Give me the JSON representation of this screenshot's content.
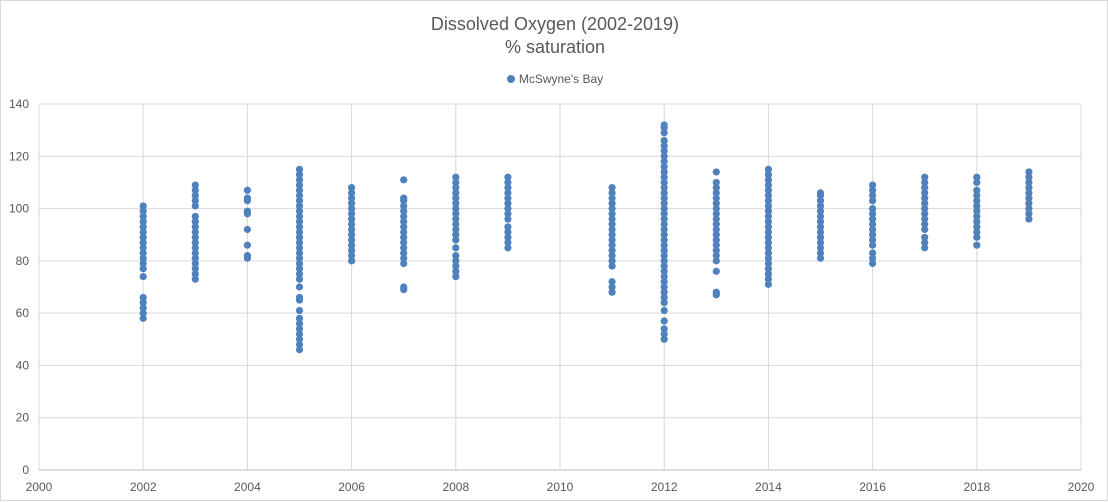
{
  "chart_data": {
    "type": "scatter",
    "title": "Dissolved Oxygen (2002-2019)",
    "subtitle": "% saturation",
    "xlabel": "",
    "ylabel": "",
    "xlim": [
      2000,
      2020
    ],
    "ylim": [
      0,
      140
    ],
    "x_ticks": [
      2000,
      2002,
      2004,
      2006,
      2008,
      2010,
      2012,
      2014,
      2016,
      2018,
      2020
    ],
    "y_ticks": [
      0,
      20,
      40,
      60,
      80,
      100,
      120,
      140
    ],
    "grid": true,
    "legend_position": "top",
    "colors": {
      "series": "#4f81bd",
      "grid": "#d9d9d9",
      "text": "#595959"
    },
    "series": [
      {
        "name": "McSwyne's Bay",
        "points": [
          [
            2002,
            58
          ],
          [
            2002,
            60
          ],
          [
            2002,
            62
          ],
          [
            2002,
            64
          ],
          [
            2002,
            66
          ],
          [
            2002,
            74
          ],
          [
            2002,
            77
          ],
          [
            2002,
            79
          ],
          [
            2002,
            81
          ],
          [
            2002,
            83
          ],
          [
            2002,
            85
          ],
          [
            2002,
            87
          ],
          [
            2002,
            89
          ],
          [
            2002,
            91
          ],
          [
            2002,
            93
          ],
          [
            2002,
            95
          ],
          [
            2002,
            97
          ],
          [
            2002,
            99
          ],
          [
            2002,
            101
          ],
          [
            2003,
            73
          ],
          [
            2003,
            75
          ],
          [
            2003,
            77
          ],
          [
            2003,
            79
          ],
          [
            2003,
            81
          ],
          [
            2003,
            83
          ],
          [
            2003,
            85
          ],
          [
            2003,
            87
          ],
          [
            2003,
            89
          ],
          [
            2003,
            91
          ],
          [
            2003,
            93
          ],
          [
            2003,
            95
          ],
          [
            2003,
            97
          ],
          [
            2003,
            101
          ],
          [
            2003,
            103
          ],
          [
            2003,
            105
          ],
          [
            2003,
            107
          ],
          [
            2003,
            109
          ],
          [
            2004,
            81
          ],
          [
            2004,
            82
          ],
          [
            2004,
            86
          ],
          [
            2004,
            92
          ],
          [
            2004,
            98
          ],
          [
            2004,
            99
          ],
          [
            2004,
            103
          ],
          [
            2004,
            104
          ],
          [
            2004,
            107
          ],
          [
            2005,
            46
          ],
          [
            2005,
            48
          ],
          [
            2005,
            50
          ],
          [
            2005,
            52
          ],
          [
            2005,
            54
          ],
          [
            2005,
            56
          ],
          [
            2005,
            58
          ],
          [
            2005,
            61
          ],
          [
            2005,
            65
          ],
          [
            2005,
            66
          ],
          [
            2005,
            70
          ],
          [
            2005,
            73
          ],
          [
            2005,
            75
          ],
          [
            2005,
            77
          ],
          [
            2005,
            79
          ],
          [
            2005,
            81
          ],
          [
            2005,
            83
          ],
          [
            2005,
            85
          ],
          [
            2005,
            87
          ],
          [
            2005,
            89
          ],
          [
            2005,
            91
          ],
          [
            2005,
            93
          ],
          [
            2005,
            95
          ],
          [
            2005,
            97
          ],
          [
            2005,
            99
          ],
          [
            2005,
            101
          ],
          [
            2005,
            103
          ],
          [
            2005,
            105
          ],
          [
            2005,
            107
          ],
          [
            2005,
            109
          ],
          [
            2005,
            111
          ],
          [
            2005,
            113
          ],
          [
            2005,
            115
          ],
          [
            2006,
            80
          ],
          [
            2006,
            82
          ],
          [
            2006,
            84
          ],
          [
            2006,
            86
          ],
          [
            2006,
            88
          ],
          [
            2006,
            90
          ],
          [
            2006,
            92
          ],
          [
            2006,
            94
          ],
          [
            2006,
            96
          ],
          [
            2006,
            98
          ],
          [
            2006,
            100
          ],
          [
            2006,
            102
          ],
          [
            2006,
            104
          ],
          [
            2006,
            106
          ],
          [
            2006,
            108
          ],
          [
            2007,
            69
          ],
          [
            2007,
            70
          ],
          [
            2007,
            79
          ],
          [
            2007,
            81
          ],
          [
            2007,
            83
          ],
          [
            2007,
            85
          ],
          [
            2007,
            87
          ],
          [
            2007,
            89
          ],
          [
            2007,
            91
          ],
          [
            2007,
            93
          ],
          [
            2007,
            95
          ],
          [
            2007,
            97
          ],
          [
            2007,
            99
          ],
          [
            2007,
            101
          ],
          [
            2007,
            103
          ],
          [
            2007,
            104
          ],
          [
            2007,
            111
          ],
          [
            2008,
            74
          ],
          [
            2008,
            76
          ],
          [
            2008,
            78
          ],
          [
            2008,
            80
          ],
          [
            2008,
            82
          ],
          [
            2008,
            85
          ],
          [
            2008,
            88
          ],
          [
            2008,
            90
          ],
          [
            2008,
            92
          ],
          [
            2008,
            94
          ],
          [
            2008,
            96
          ],
          [
            2008,
            98
          ],
          [
            2008,
            100
          ],
          [
            2008,
            102
          ],
          [
            2008,
            104
          ],
          [
            2008,
            106
          ],
          [
            2008,
            108
          ],
          [
            2008,
            110
          ],
          [
            2008,
            112
          ],
          [
            2009,
            85
          ],
          [
            2009,
            87
          ],
          [
            2009,
            89
          ],
          [
            2009,
            91
          ],
          [
            2009,
            93
          ],
          [
            2009,
            96
          ],
          [
            2009,
            98
          ],
          [
            2009,
            100
          ],
          [
            2009,
            102
          ],
          [
            2009,
            104
          ],
          [
            2009,
            106
          ],
          [
            2009,
            108
          ],
          [
            2009,
            110
          ],
          [
            2009,
            112
          ],
          [
            2011,
            68
          ],
          [
            2011,
            70
          ],
          [
            2011,
            72
          ],
          [
            2011,
            78
          ],
          [
            2011,
            80
          ],
          [
            2011,
            82
          ],
          [
            2011,
            84
          ],
          [
            2011,
            86
          ],
          [
            2011,
            88
          ],
          [
            2011,
            90
          ],
          [
            2011,
            92
          ],
          [
            2011,
            94
          ],
          [
            2011,
            96
          ],
          [
            2011,
            98
          ],
          [
            2011,
            100
          ],
          [
            2011,
            102
          ],
          [
            2011,
            104
          ],
          [
            2011,
            106
          ],
          [
            2011,
            108
          ],
          [
            2012,
            50
          ],
          [
            2012,
            52
          ],
          [
            2012,
            54
          ],
          [
            2012,
            57
          ],
          [
            2012,
            61
          ],
          [
            2012,
            64
          ],
          [
            2012,
            66
          ],
          [
            2012,
            68
          ],
          [
            2012,
            70
          ],
          [
            2012,
            72
          ],
          [
            2012,
            74
          ],
          [
            2012,
            76
          ],
          [
            2012,
            78
          ],
          [
            2012,
            80
          ],
          [
            2012,
            82
          ],
          [
            2012,
            84
          ],
          [
            2012,
            86
          ],
          [
            2012,
            88
          ],
          [
            2012,
            90
          ],
          [
            2012,
            92
          ],
          [
            2012,
            94
          ],
          [
            2012,
            96
          ],
          [
            2012,
            98
          ],
          [
            2012,
            100
          ],
          [
            2012,
            102
          ],
          [
            2012,
            104
          ],
          [
            2012,
            106
          ],
          [
            2012,
            108
          ],
          [
            2012,
            110
          ],
          [
            2012,
            112
          ],
          [
            2012,
            114
          ],
          [
            2012,
            116
          ],
          [
            2012,
            118
          ],
          [
            2012,
            120
          ],
          [
            2012,
            122
          ],
          [
            2012,
            124
          ],
          [
            2012,
            126
          ],
          [
            2012,
            129
          ],
          [
            2012,
            131
          ],
          [
            2012,
            132
          ],
          [
            2013,
            67
          ],
          [
            2013,
            68
          ],
          [
            2013,
            76
          ],
          [
            2013,
            80
          ],
          [
            2013,
            82
          ],
          [
            2013,
            84
          ],
          [
            2013,
            86
          ],
          [
            2013,
            88
          ],
          [
            2013,
            90
          ],
          [
            2013,
            92
          ],
          [
            2013,
            94
          ],
          [
            2013,
            96
          ],
          [
            2013,
            98
          ],
          [
            2013,
            100
          ],
          [
            2013,
            102
          ],
          [
            2013,
            104
          ],
          [
            2013,
            106
          ],
          [
            2013,
            108
          ],
          [
            2013,
            110
          ],
          [
            2013,
            114
          ],
          [
            2014,
            71
          ],
          [
            2014,
            73
          ],
          [
            2014,
            75
          ],
          [
            2014,
            77
          ],
          [
            2014,
            79
          ],
          [
            2014,
            81
          ],
          [
            2014,
            83
          ],
          [
            2014,
            85
          ],
          [
            2014,
            87
          ],
          [
            2014,
            89
          ],
          [
            2014,
            91
          ],
          [
            2014,
            93
          ],
          [
            2014,
            95
          ],
          [
            2014,
            97
          ],
          [
            2014,
            99
          ],
          [
            2014,
            101
          ],
          [
            2014,
            103
          ],
          [
            2014,
            105
          ],
          [
            2014,
            107
          ],
          [
            2014,
            109
          ],
          [
            2014,
            111
          ],
          [
            2014,
            113
          ],
          [
            2014,
            115
          ],
          [
            2015,
            81
          ],
          [
            2015,
            83
          ],
          [
            2015,
            85
          ],
          [
            2015,
            87
          ],
          [
            2015,
            89
          ],
          [
            2015,
            91
          ],
          [
            2015,
            93
          ],
          [
            2015,
            95
          ],
          [
            2015,
            97
          ],
          [
            2015,
            99
          ],
          [
            2015,
            101
          ],
          [
            2015,
            103
          ],
          [
            2015,
            105
          ],
          [
            2015,
            106
          ],
          [
            2016,
            79
          ],
          [
            2016,
            81
          ],
          [
            2016,
            83
          ],
          [
            2016,
            86
          ],
          [
            2016,
            88
          ],
          [
            2016,
            90
          ],
          [
            2016,
            92
          ],
          [
            2016,
            94
          ],
          [
            2016,
            96
          ],
          [
            2016,
            98
          ],
          [
            2016,
            100
          ],
          [
            2016,
            103
          ],
          [
            2016,
            105
          ],
          [
            2016,
            107
          ],
          [
            2016,
            109
          ],
          [
            2017,
            85
          ],
          [
            2017,
            87
          ],
          [
            2017,
            89
          ],
          [
            2017,
            92
          ],
          [
            2017,
            94
          ],
          [
            2017,
            96
          ],
          [
            2017,
            98
          ],
          [
            2017,
            100
          ],
          [
            2017,
            102
          ],
          [
            2017,
            104
          ],
          [
            2017,
            106
          ],
          [
            2017,
            108
          ],
          [
            2017,
            110
          ],
          [
            2017,
            112
          ],
          [
            2018,
            86
          ],
          [
            2018,
            89
          ],
          [
            2018,
            91
          ],
          [
            2018,
            93
          ],
          [
            2018,
            95
          ],
          [
            2018,
            97
          ],
          [
            2018,
            99
          ],
          [
            2018,
            101
          ],
          [
            2018,
            103
          ],
          [
            2018,
            105
          ],
          [
            2018,
            107
          ],
          [
            2018,
            110
          ],
          [
            2018,
            112
          ],
          [
            2019,
            96
          ],
          [
            2019,
            98
          ],
          [
            2019,
            100
          ],
          [
            2019,
            102
          ],
          [
            2019,
            104
          ],
          [
            2019,
            106
          ],
          [
            2019,
            108
          ],
          [
            2019,
            110
          ],
          [
            2019,
            112
          ],
          [
            2019,
            114
          ]
        ]
      }
    ]
  }
}
